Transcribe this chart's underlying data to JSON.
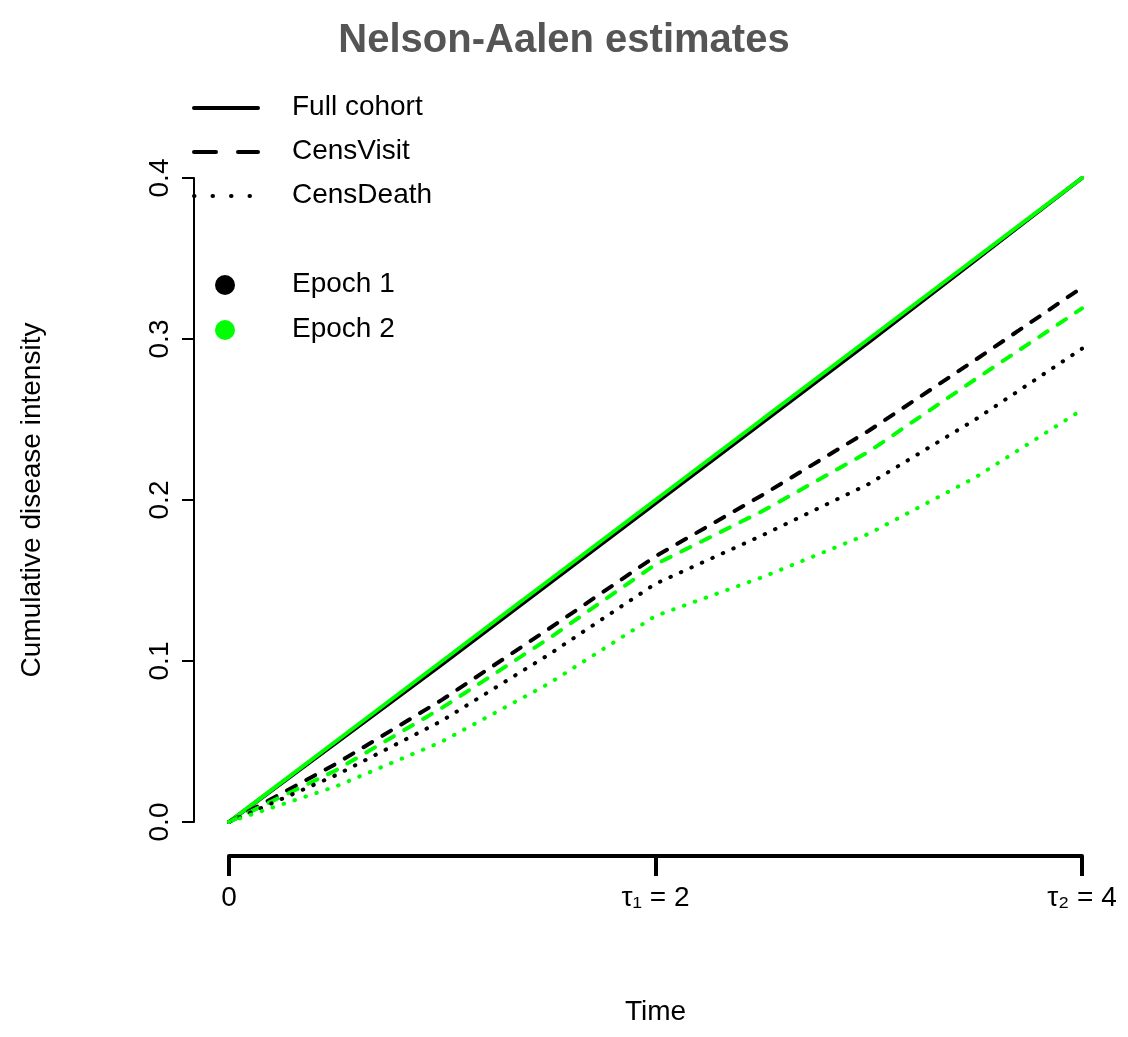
{
  "chart_data": {
    "type": "line",
    "title": "Nelson-Aalen estimates",
    "xlabel": "Time",
    "ylabel": "Cumulative disease intensity",
    "x": [
      0,
      0.5,
      1,
      1.5,
      2,
      2.5,
      3,
      3.5,
      4
    ],
    "series": [
      {
        "color": "#000000",
        "line_style": "solid",
        "values": [
          0,
          0.049,
          0.098,
          0.148,
          0.198,
          0.248,
          0.298,
          0.349,
          0.4
        ]
      },
      {
        "color": "#00ff00",
        "line_style": "solid",
        "values": [
          0,
          0.05,
          0.1,
          0.15,
          0.2,
          0.25,
          0.3,
          0.35,
          0.4
        ]
      },
      {
        "color": "#000000",
        "line_style": "dashed",
        "values": [
          0,
          0.036,
          0.076,
          0.12,
          0.165,
          0.203,
          0.243,
          0.287,
          0.332
        ]
      },
      {
        "color": "#00ff00",
        "line_style": "dashed",
        "values": [
          0,
          0.032,
          0.071,
          0.114,
          0.16,
          0.193,
          0.23,
          0.275,
          0.319
        ]
      },
      {
        "color": "#000000",
        "line_style": "dotted",
        "values": [
          0,
          0.029,
          0.063,
          0.104,
          0.148,
          0.178,
          0.21,
          0.25,
          0.294
        ]
      },
      {
        "color": "#00ff00",
        "line_style": "dotted",
        "values": [
          0,
          0.022,
          0.05,
          0.086,
          0.128,
          0.152,
          0.179,
          0.214,
          0.256
        ]
      }
    ],
    "annotations": [
      "Full cohort",
      "CensVisit",
      "CensDeath",
      "Epoch 1",
      "Epoch 2"
    ],
    "grid": false,
    "marker": "none",
    "xlim": [
      0,
      4
    ],
    "xticks": [
      0,
      {
        "value": 2,
        "label": "τ₁ = 2"
      },
      {
        "value": 4,
        "label": "τ₂ = 4"
      }
    ],
    "ylim": [
      0,
      0.4
    ],
    "yticks": [
      {
        "value": 0,
        "label": "0.0"
      },
      0.1,
      0.2,
      0.3,
      0.4
    ]
  }
}
